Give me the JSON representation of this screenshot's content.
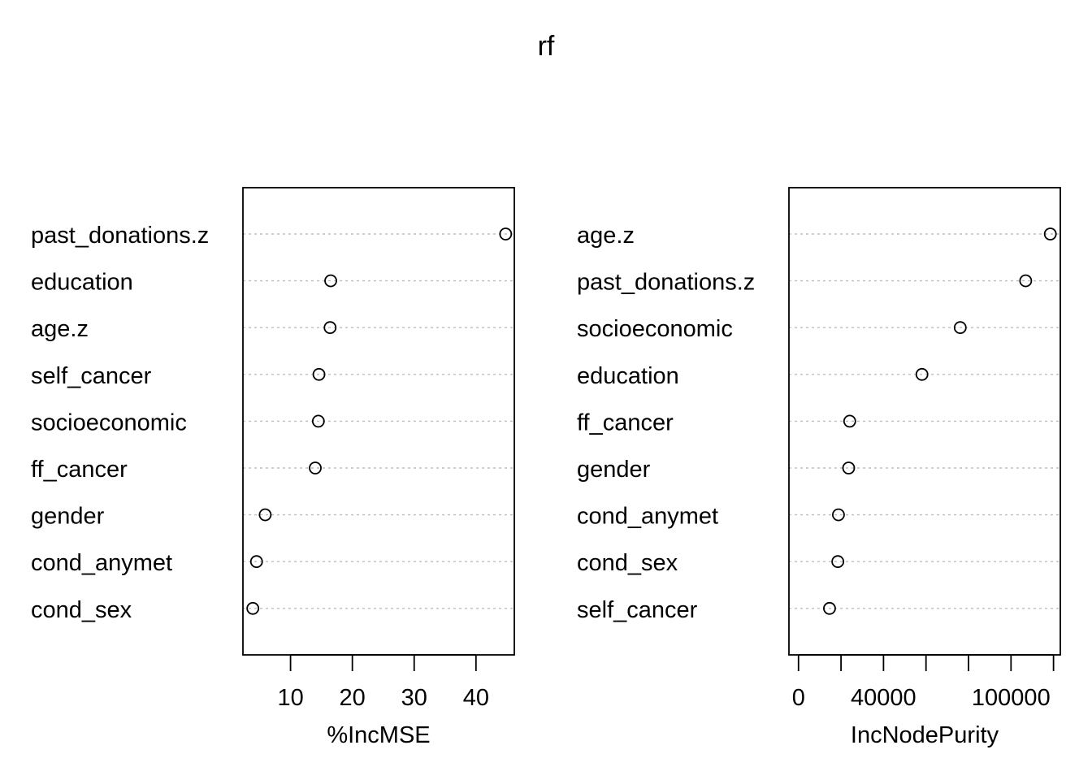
{
  "title": "rf",
  "chart_data": [
    {
      "type": "scatter",
      "subtype": "dotchart",
      "xlabel": "%IncMSE",
      "xlim": [
        2.3,
        46.2
      ],
      "xticks": [
        10,
        20,
        30,
        40
      ],
      "xtick_labels": [
        "10",
        "20",
        "30",
        "40"
      ],
      "grid": "dotted horizontal guide lines",
      "categories": [
        "past_donations.z",
        "education",
        "age.z",
        "self_cancer",
        "socioeconomic",
        "ff_cancer",
        "gender",
        "cond_anymet",
        "cond_sex"
      ],
      "values": [
        44.8,
        16.5,
        16.4,
        14.6,
        14.5,
        14.0,
        5.9,
        4.5,
        3.9
      ]
    },
    {
      "type": "scatter",
      "subtype": "dotchart",
      "xlabel": "IncNodePurity",
      "xlim": [
        -4500,
        123200
      ],
      "xticks": [
        0,
        20000,
        40000,
        60000,
        80000,
        100000,
        120000
      ],
      "xtick_labels": [
        "0",
        "",
        "40000",
        "",
        "",
        "100000",
        ""
      ],
      "grid": "dotted horizontal guide lines",
      "categories": [
        "age.z",
        "past_donations.z",
        "socioeconomic",
        "education",
        "ff_cancer",
        "gender",
        "cond_anymet",
        "cond_sex",
        "self_cancer"
      ],
      "values": [
        118500,
        106900,
        76100,
        58100,
        24100,
        23600,
        18800,
        18500,
        14600
      ]
    }
  ],
  "colors": {
    "ink": "#000000",
    "grid": "#bebebe",
    "background": "#ffffff"
  }
}
